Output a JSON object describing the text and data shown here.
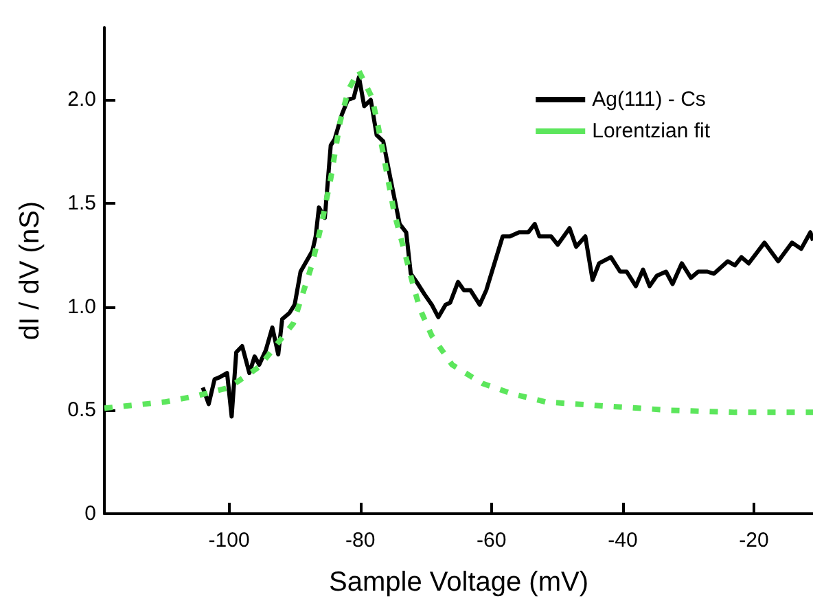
{
  "chart_data": {
    "type": "line",
    "xlabel": "Sample Voltage (mV)",
    "ylabel": "dI / dV (nS)",
    "xlim": [
      -119,
      -11
    ],
    "ylim": [
      0,
      2.35
    ],
    "xticks": [
      -100,
      -80,
      -60,
      -40,
      -20
    ],
    "yticks": [
      0,
      0.5,
      {
        "value": 1,
        "label": "1.0"
      },
      1.5,
      {
        "value": 2,
        "label": "2.0"
      }
    ],
    "grid": false,
    "legend": "top right",
    "marker": "none",
    "series": [
      {
        "name": "Ag(111) - Cs",
        "color": "#000000",
        "line_style": "solid",
        "x": [
          -104.0,
          -103.1,
          -102.2,
          -101.4,
          -100.3,
          -99.6,
          -98.9,
          -98.0,
          -96.9,
          -96.1,
          -95.4,
          -94.4,
          -93.4,
          -92.5,
          -91.9,
          -90.8,
          -90.0,
          -89.1,
          -87.3,
          -86.8,
          -86.3,
          -85.4,
          -84.5,
          -83.9,
          -82.8,
          -81.9,
          -81.0,
          -80.2,
          -79.4,
          -78.4,
          -77.5,
          -76.5,
          -75.4,
          -74.0,
          -73.0,
          -72.3,
          -71.2,
          -70.2,
          -69.1,
          -68.1,
          -67.0,
          -66.3,
          -65.1,
          -64.2,
          -63.2,
          -61.8,
          -60.8,
          -58.3,
          -57.2,
          -55.8,
          -54.4,
          -53.4,
          -52.7,
          -50.9,
          -49.9,
          -48.1,
          -47.1,
          -45.7,
          -44.6,
          -43.6,
          -41.8,
          -40.4,
          -39.4,
          -38.0,
          -36.9,
          -35.9,
          -34.8,
          -33.4,
          -32.4,
          -31.0,
          -29.6,
          -28.5,
          -27.1,
          -26.1,
          -24.0,
          -22.9,
          -21.9,
          -20.8,
          -18.4,
          -16.3,
          -14.2,
          -12.8,
          -11.4,
          -11.0
        ],
        "values": [
          0.61,
          0.53,
          0.65,
          0.66,
          0.68,
          0.47,
          0.78,
          0.81,
          0.68,
          0.76,
          0.72,
          0.79,
          0.9,
          0.77,
          0.94,
          0.97,
          1.01,
          1.17,
          1.27,
          1.34,
          1.48,
          1.43,
          1.78,
          1.81,
          1.93,
          2.0,
          2.01,
          2.11,
          1.97,
          2.0,
          1.83,
          1.8,
          1.62,
          1.4,
          1.36,
          1.16,
          1.11,
          1.06,
          1.01,
          0.95,
          1.01,
          1.02,
          1.12,
          1.08,
          1.08,
          1.01,
          1.08,
          1.34,
          1.34,
          1.36,
          1.36,
          1.4,
          1.34,
          1.34,
          1.3,
          1.38,
          1.29,
          1.34,
          1.13,
          1.21,
          1.24,
          1.17,
          1.17,
          1.1,
          1.18,
          1.1,
          1.15,
          1.17,
          1.11,
          1.21,
          1.14,
          1.17,
          1.17,
          1.16,
          1.22,
          1.2,
          1.24,
          1.21,
          1.31,
          1.22,
          1.31,
          1.28,
          1.36,
          1.32
        ]
      },
      {
        "name": "Lorentzian fit",
        "color": "#5ce65c",
        "line_style": "dashed",
        "x": [
          -119,
          -109.8,
          -104.9,
          -100.0,
          -95.4,
          -90.2,
          -87.3,
          -85.9,
          -84.5,
          -83.1,
          -81.8,
          -80.2,
          -78.2,
          -77.2,
          -75.8,
          -74.8,
          -73.7,
          -71.9,
          -70.9,
          -69.1,
          -66.0,
          -61.4,
          -56.9,
          -51.7,
          -42.5,
          -32.7,
          -22.9,
          -13.1,
          -11.0
        ],
        "values": [
          0.51,
          0.54,
          0.57,
          0.61,
          0.71,
          0.92,
          1.21,
          1.4,
          1.62,
          1.89,
          2.05,
          2.14,
          2.01,
          1.86,
          1.62,
          1.45,
          1.32,
          1.1,
          0.99,
          0.86,
          0.72,
          0.63,
          0.58,
          0.54,
          0.52,
          0.5,
          0.49,
          0.49,
          0.49
        ]
      }
    ]
  }
}
